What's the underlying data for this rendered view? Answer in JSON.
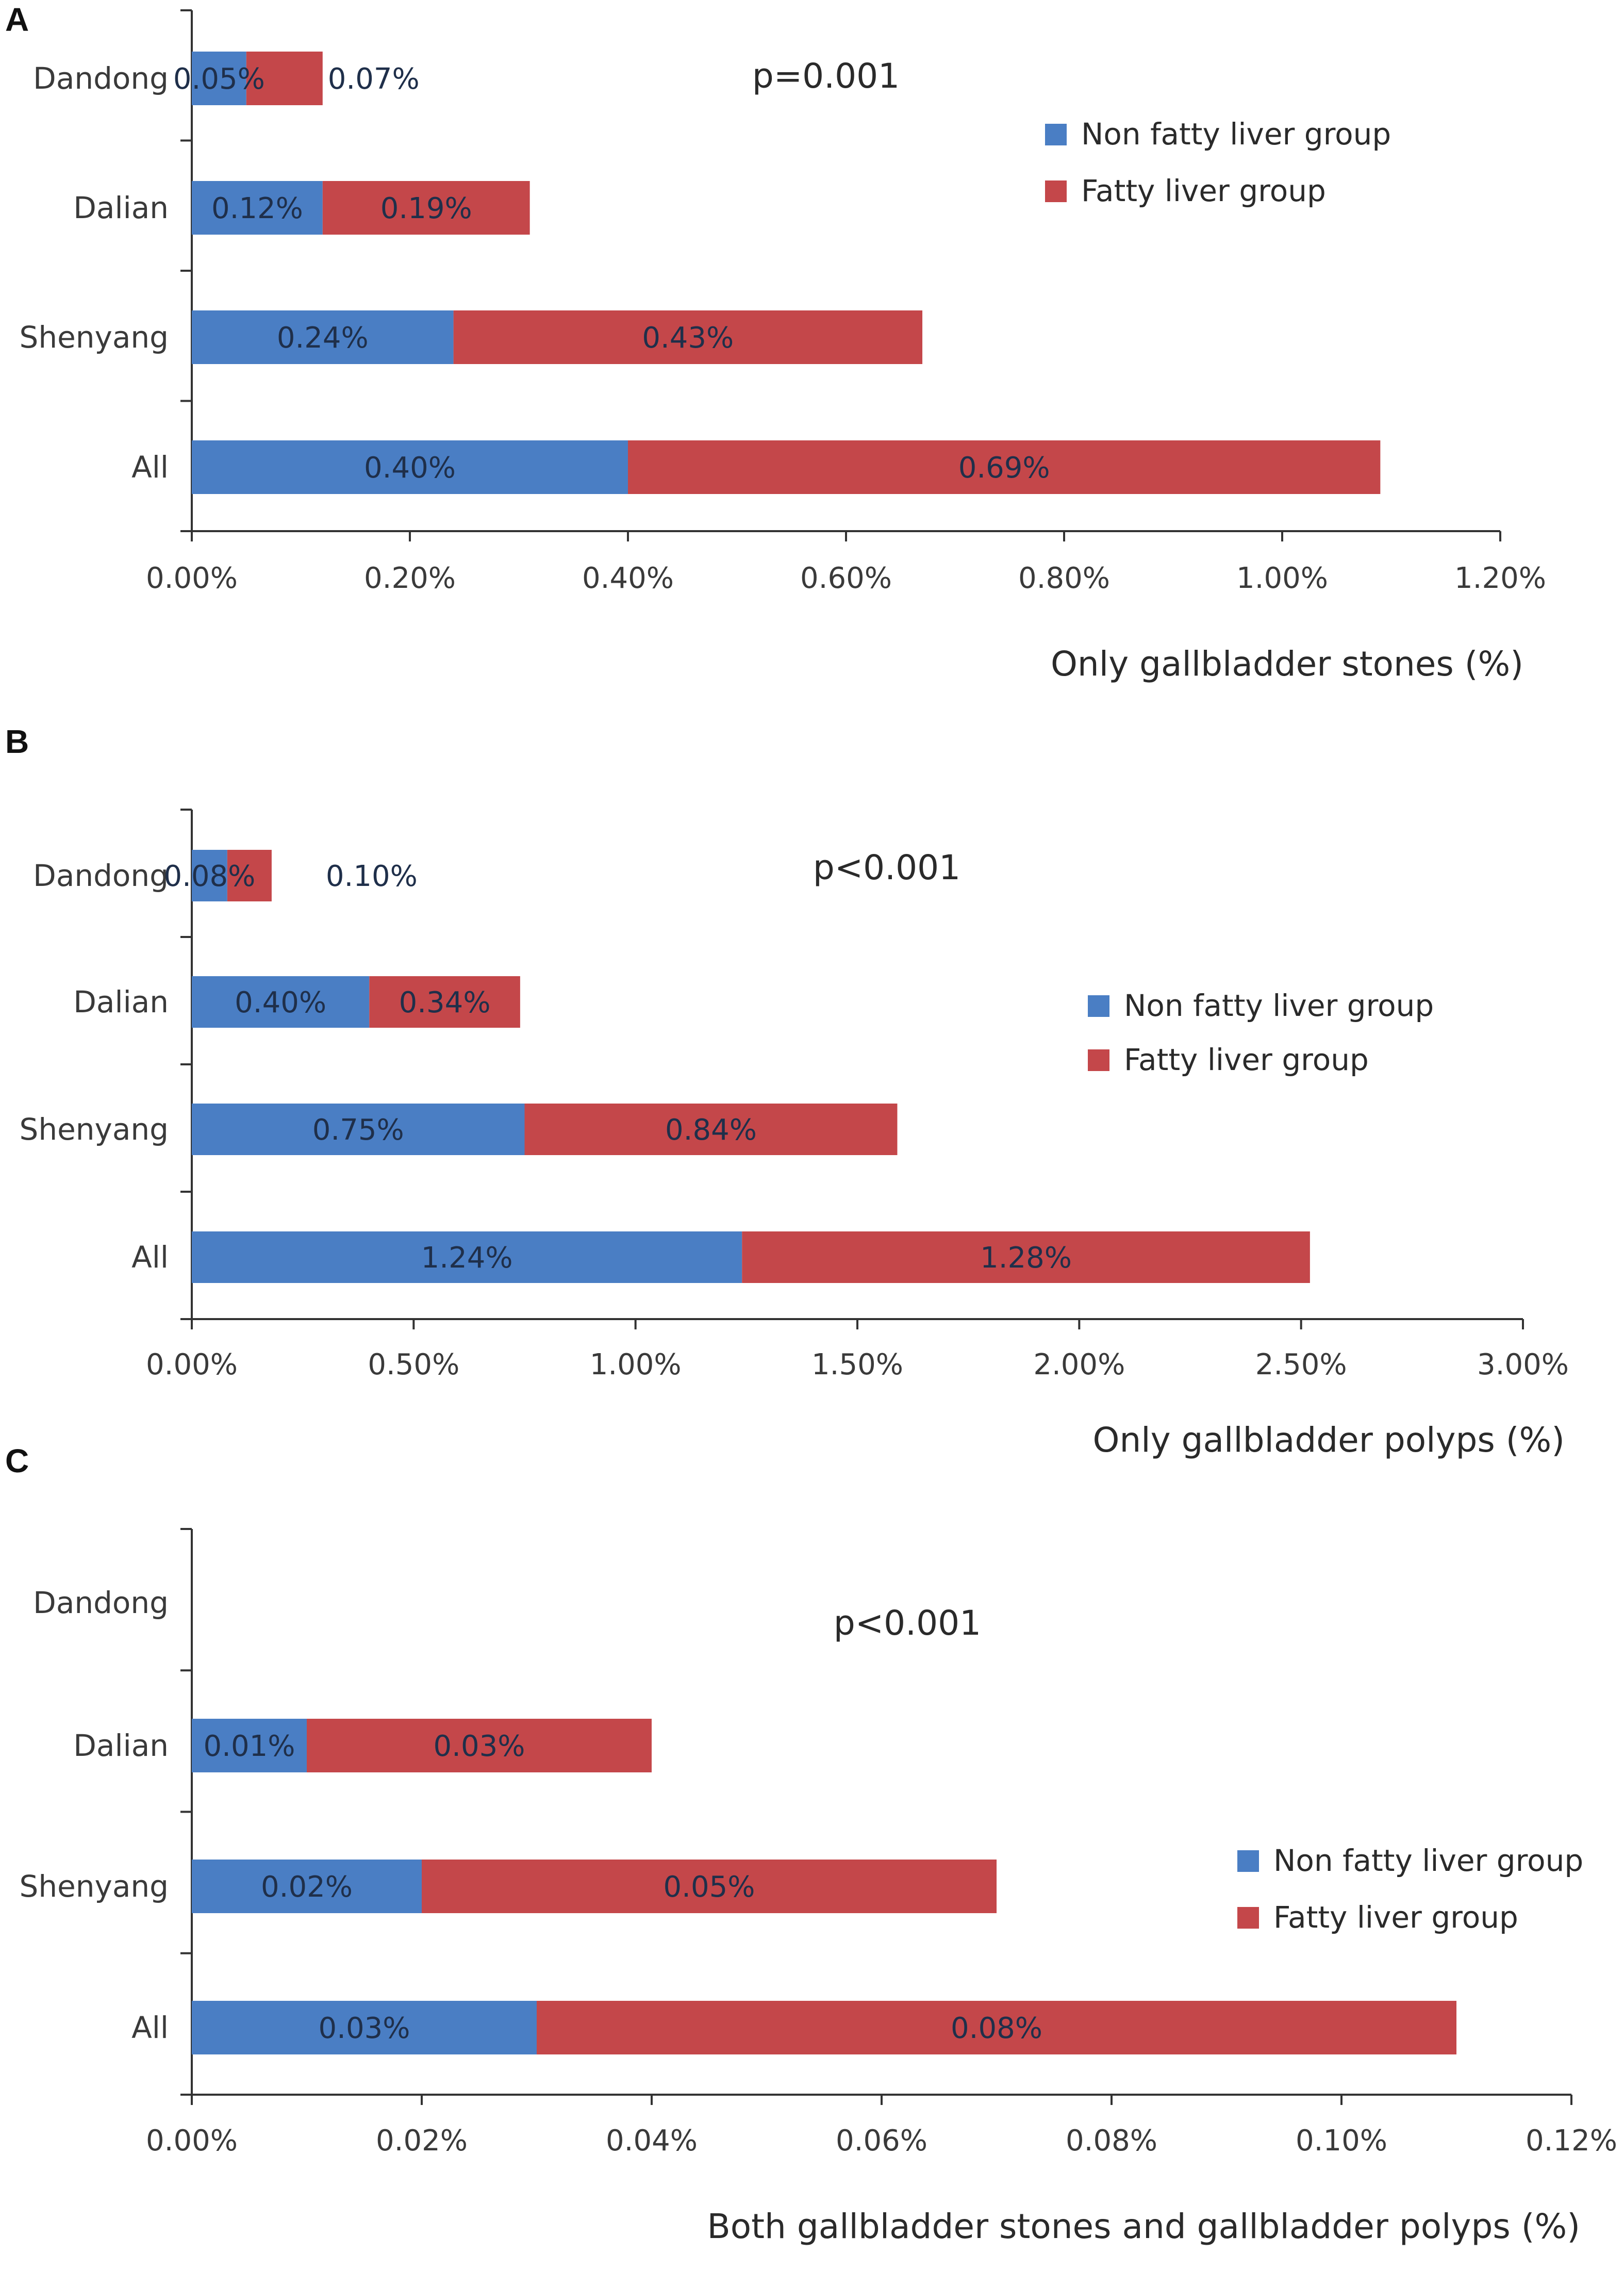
{
  "colors": {
    "non_fatty": "#4a7ec4",
    "fatty": "#c4474a",
    "axis": "#333333"
  },
  "legend": {
    "series": [
      "Non fatty liver group",
      "Fatty liver group"
    ]
  },
  "chart_data": [
    {
      "panel": "A",
      "type": "bar",
      "orientation": "horizontal",
      "stacked": true,
      "categories": [
        "Dandong",
        "Dalian",
        "Shenyang",
        "All"
      ],
      "series": [
        {
          "name": "Non fatty liver group",
          "values": [
            0.05,
            0.12,
            0.24,
            0.4
          ],
          "labels": [
            "0.05%",
            "0.12%",
            "0.24%",
            "0.40%"
          ]
        },
        {
          "name": "Fatty liver group",
          "values": [
            0.07,
            0.19,
            0.43,
            0.69
          ],
          "labels": [
            "0.07%",
            "0.19%",
            "0.43%",
            "0.69%"
          ]
        }
      ],
      "xlim": [
        0,
        1.2
      ],
      "xticks": [
        "0.00%",
        "0.20%",
        "0.40%",
        "0.60%",
        "0.80%",
        "1.00%",
        "1.20%"
      ],
      "xlabel": "Only gallbladder stones (%)",
      "annotation": "p=0.001",
      "legend_position": "top-right"
    },
    {
      "panel": "B",
      "type": "bar",
      "orientation": "horizontal",
      "stacked": true,
      "categories": [
        "Dandong",
        "Dalian",
        "Shenyang",
        "All"
      ],
      "series": [
        {
          "name": "Non fatty liver group",
          "values": [
            0.08,
            0.4,
            0.75,
            1.24
          ],
          "labels": [
            "0.08%",
            "0.40%",
            "0.75%",
            "1.24%"
          ]
        },
        {
          "name": "Fatty liver group",
          "values": [
            0.1,
            0.34,
            0.84,
            1.28
          ],
          "labels": [
            "0.10%",
            "0.34%",
            "0.84%",
            "1.28%"
          ]
        }
      ],
      "xlim": [
        0,
        3.0
      ],
      "xticks": [
        "0.00%",
        "0.50%",
        "1.00%",
        "1.50%",
        "2.00%",
        "2.50%",
        "3.00%"
      ],
      "xlabel": "Only gallbladder polyps (%)",
      "annotation": "p<0.001",
      "legend_position": "right"
    },
    {
      "panel": "C",
      "type": "bar",
      "orientation": "horizontal",
      "stacked": true,
      "categories": [
        "Dandong",
        "Dalian",
        "Shenyang",
        "All"
      ],
      "series": [
        {
          "name": "Non fatty liver group",
          "values": [
            0,
            0.01,
            0.02,
            0.03
          ],
          "labels": [
            "",
            "0.01%",
            "0.02%",
            "0.03%"
          ]
        },
        {
          "name": "Fatty liver group",
          "values": [
            0,
            0.03,
            0.05,
            0.08
          ],
          "labels": [
            "",
            "0.03%",
            "0.05%",
            "0.08%"
          ]
        }
      ],
      "xlim": [
        0,
        0.12
      ],
      "xticks": [
        "0.00%",
        "0.02%",
        "0.04%",
        "0.06%",
        "0.08%",
        "0.10%",
        "0.12%"
      ],
      "xlabel": "Both gallbladder stones and gallbladder polyps (%)",
      "annotation": "p<0.001",
      "legend_position": "bottom-right"
    }
  ]
}
